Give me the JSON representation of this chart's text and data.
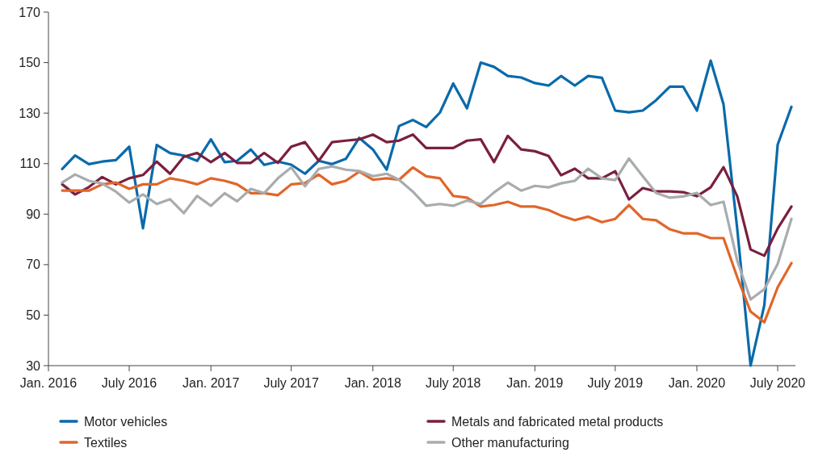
{
  "chart_data": {
    "type": "line",
    "x": [
      "2016-02",
      "2016-03",
      "2016-04",
      "2016-05",
      "2016-06",
      "2016-07",
      "2016-08",
      "2016-09",
      "2016-10",
      "2016-11",
      "2016-12",
      "2017-01",
      "2017-02",
      "2017-03",
      "2017-04",
      "2017-05",
      "2017-06",
      "2017-07",
      "2017-08",
      "2017-09",
      "2017-10",
      "2017-11",
      "2017-12",
      "2018-01",
      "2018-02",
      "2018-03",
      "2018-04",
      "2018-05",
      "2018-06",
      "2018-07",
      "2018-08",
      "2018-09",
      "2018-10",
      "2018-11",
      "2018-12",
      "2019-01",
      "2019-02",
      "2019-03",
      "2019-04",
      "2019-05",
      "2019-06",
      "2019-07",
      "2019-08",
      "2019-09",
      "2019-10",
      "2019-11",
      "2019-12",
      "2020-01",
      "2020-02",
      "2020-03",
      "2020-04",
      "2020-05",
      "2020-06",
      "2020-07",
      "2020-08"
    ],
    "series": [
      {
        "name": "Motor vehicles",
        "color": "#0a6aaa",
        "values": [
          107.9,
          113.2,
          109.8,
          110.8,
          111.4,
          116.7,
          84.4,
          117.4,
          114.2,
          113.2,
          111.1,
          119.6,
          110.6,
          111.1,
          115.6,
          109.5,
          110.8,
          109.6,
          106,
          111.1,
          109.8,
          111.9,
          120.2,
          115.6,
          107.6,
          124.9,
          127.3,
          124.5,
          130.2,
          141.7,
          131.9,
          150,
          148.3,
          144.7,
          144.1,
          141.9,
          140.9,
          144.7,
          140.9,
          144.7,
          144,
          131,
          130.3,
          131,
          135.1,
          140.5,
          140.5,
          131,
          150.8,
          133.5,
          84,
          30,
          54,
          117.5,
          132.5
        ]
      },
      {
        "name": "Metals and fabricated metal products",
        "color": "#7a1f3f",
        "values": [
          101.8,
          97.8,
          100.7,
          104.7,
          101.8,
          104.2,
          105.5,
          110.8,
          106,
          112.7,
          114.2,
          110.6,
          114.2,
          110.3,
          110.3,
          114.2,
          110.3,
          116.7,
          118.5,
          111.1,
          118.5,
          119.1,
          119.6,
          121.5,
          118.5,
          119.1,
          121.5,
          116.2,
          116.2,
          116.2,
          119.1,
          119.6,
          110.6,
          121,
          115.6,
          114.9,
          113,
          105.4,
          108,
          104.2,
          104.2,
          107,
          95.8,
          100.3,
          99,
          99,
          98.7,
          97.1,
          100.6,
          108.6,
          97,
          76,
          73.5,
          84.3,
          93
        ]
      },
      {
        "name": "Textiles",
        "color": "#e0662a",
        "values": [
          99.3,
          99.3,
          99.3,
          101.8,
          102.5,
          100,
          101.8,
          101.8,
          104.2,
          103.2,
          101.8,
          104.2,
          103.2,
          101.8,
          98.3,
          98.3,
          97.5,
          101.8,
          102.3,
          105.7,
          101.8,
          103.2,
          106.8,
          103.6,
          104.2,
          103.6,
          108.5,
          105,
          104.2,
          97.2,
          96.5,
          93,
          93.6,
          94.9,
          93,
          93,
          91.6,
          89.4,
          87.6,
          89,
          86.8,
          88.1,
          93.6,
          88.1,
          87.6,
          84,
          82.4,
          82.4,
          80.5,
          80.5,
          65,
          51.4,
          47.2,
          61,
          70.6
        ]
      },
      {
        "name": "Other manufacturing",
        "color": "#a8acae",
        "values": [
          102.5,
          105.7,
          103.2,
          102.1,
          98.9,
          94.6,
          97.8,
          94,
          95.9,
          90.4,
          97.2,
          93.3,
          98.3,
          95.1,
          100,
          98.3,
          104.2,
          108.5,
          101,
          107.9,
          108.9,
          107.6,
          107.1,
          105,
          106,
          103.6,
          98.9,
          93.3,
          94,
          93.3,
          95.4,
          94,
          98.6,
          102.5,
          99.3,
          101.2,
          100.6,
          102.2,
          103.2,
          108,
          104.2,
          103.5,
          112,
          105,
          98.4,
          96.5,
          97,
          98.4,
          93.6,
          94.9,
          71.5,
          56.2,
          60.3,
          70.3,
          88.1
        ]
      }
    ],
    "xlim": [
      "2016-01-01",
      "2020-08-10"
    ],
    "xticks": [
      {
        "value": "2016-01",
        "label": "Jan. 2016"
      },
      {
        "value": "2016-07",
        "label": "July 2016"
      },
      {
        "value": "2017-01",
        "label": "Jan. 2017"
      },
      {
        "value": "2017-07",
        "label": "July 2017"
      },
      {
        "value": "2018-01",
        "label": "Jan. 2018"
      },
      {
        "value": "2018-07",
        "label": "July 2018"
      },
      {
        "value": "2019-01",
        "label": "Jan. 2019"
      },
      {
        "value": "2019-07",
        "label": "July 2019"
      },
      {
        "value": "2020-01",
        "label": "Jan. 2020"
      },
      {
        "value": "2020-07",
        "label": "July 2020"
      }
    ],
    "ylim": [
      30,
      170
    ],
    "yticks": [
      30,
      50,
      70,
      90,
      110,
      130,
      150,
      170
    ],
    "grid": false,
    "legend": "bottom",
    "marker": "none",
    "line_style": "solid"
  }
}
